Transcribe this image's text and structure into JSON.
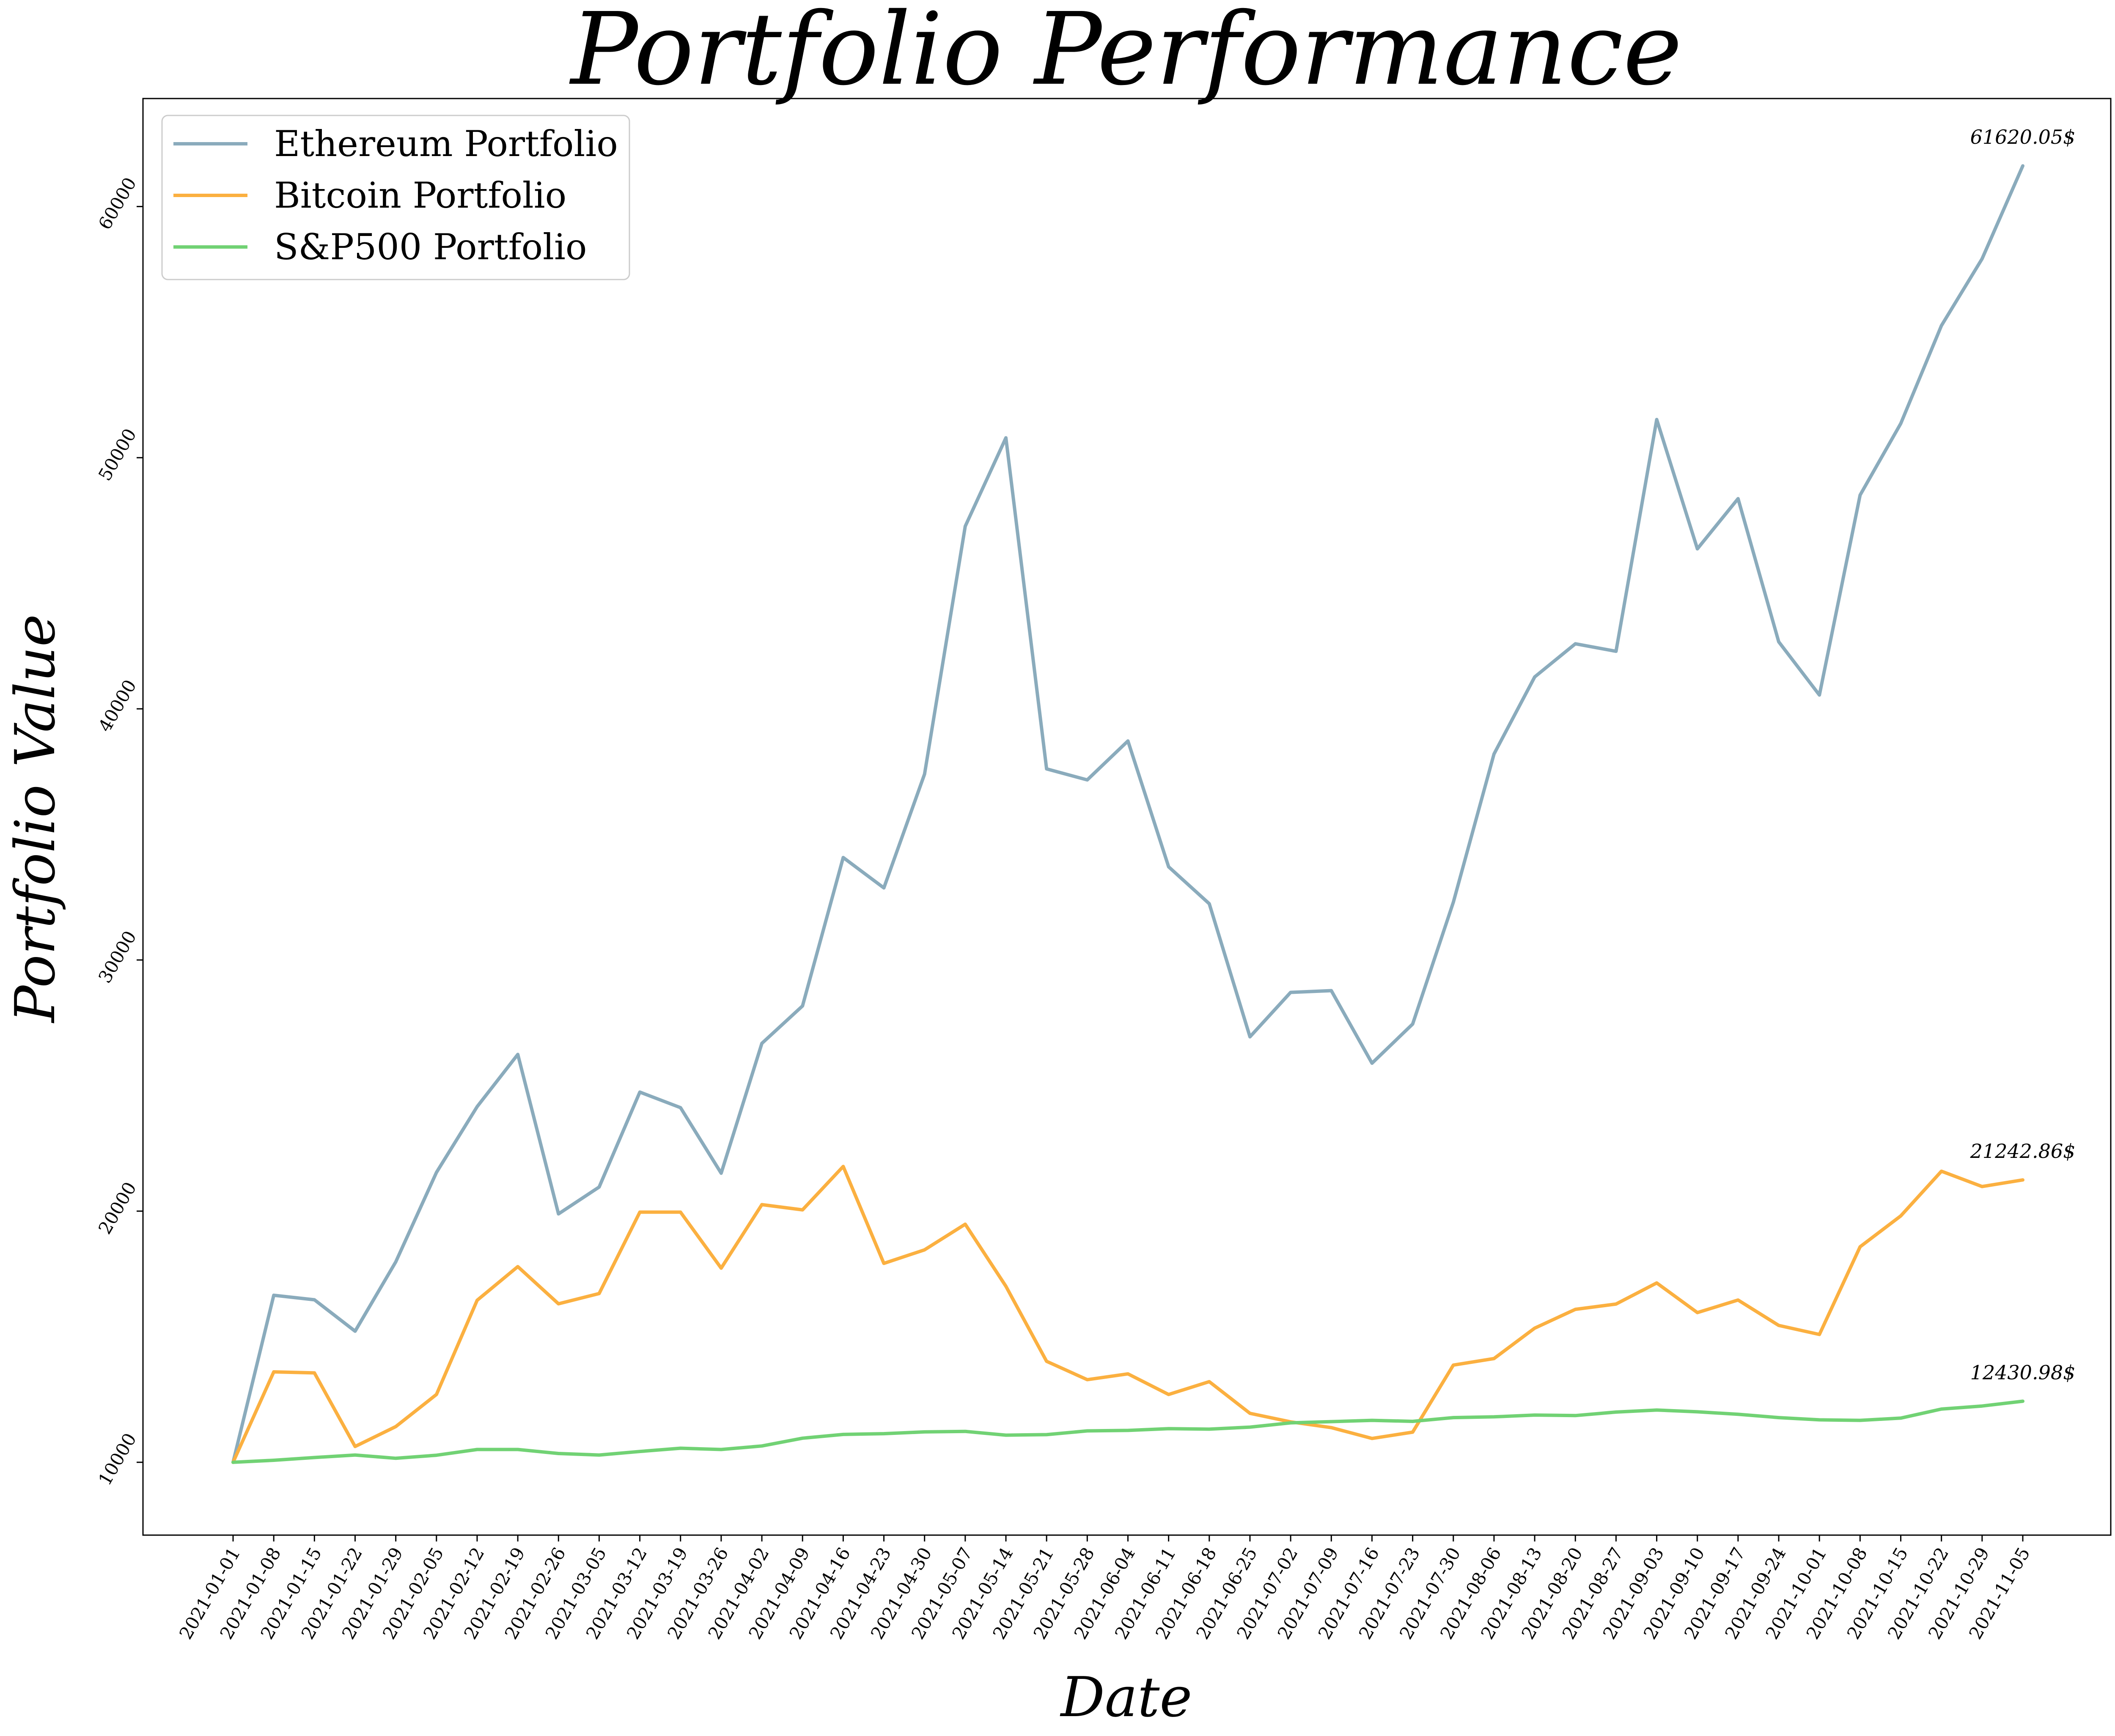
{
  "chart_data": {
    "type": "line",
    "title": "Portfolio Performance",
    "xlabel": "Date",
    "ylabel": "Portfolio Value",
    "x": [
      "2021-01-01",
      "2021-01-08",
      "2021-01-15",
      "2021-01-22",
      "2021-01-29",
      "2021-02-05",
      "2021-02-12",
      "2021-02-19",
      "2021-02-26",
      "2021-03-05",
      "2021-03-12",
      "2021-03-19",
      "2021-03-26",
      "2021-04-02",
      "2021-04-09",
      "2021-04-16",
      "2021-04-23",
      "2021-04-30",
      "2021-05-07",
      "2021-05-14",
      "2021-05-21",
      "2021-05-28",
      "2021-06-04",
      "2021-06-11",
      "2021-06-18",
      "2021-06-25",
      "2021-07-02",
      "2021-07-09",
      "2021-07-16",
      "2021-07-23",
      "2021-07-30",
      "2021-08-06",
      "2021-08-13",
      "2021-08-20",
      "2021-08-27",
      "2021-09-03",
      "2021-09-10",
      "2021-09-17",
      "2021-09-24",
      "2021-10-01",
      "2021-10-08",
      "2021-10-15",
      "2021-10-22",
      "2021-10-29",
      "2021-11-05"
    ],
    "yticks": [
      10000,
      20000,
      30000,
      40000,
      50000,
      60000
    ],
    "ylim": [
      7100,
      64300
    ],
    "grid": false,
    "legend_position": "upper-left",
    "series": [
      {
        "name": "Ethereum Portfolio",
        "color": "#8aabbc",
        "end_label": "61620.05$",
        "values": [
          10000,
          16650,
          16470,
          15220,
          17980,
          21540,
          24160,
          26240,
          19890,
          20960,
          24740,
          24120,
          21510,
          26680,
          28170,
          34080,
          32870,
          37400,
          47270,
          50790,
          37610,
          37170,
          38720,
          33710,
          32240,
          26940,
          28710,
          28780,
          25890,
          27450,
          32300,
          38200,
          41270,
          42590,
          42290,
          51520,
          46370,
          48370,
          42670,
          40550,
          48510,
          51360,
          55260,
          57920,
          61620.05
        ]
      },
      {
        "name": "Bitcoin Portfolio",
        "color": "#fbb040",
        "end_label": "21242.86$",
        "values": [
          10000,
          13600,
          13560,
          10630,
          11420,
          12700,
          16450,
          17790,
          16310,
          16720,
          19960,
          19960,
          17730,
          20260,
          20050,
          21780,
          17920,
          18460,
          19480,
          17010,
          14020,
          13290,
          13520,
          12700,
          13210,
          11950,
          11610,
          11380,
          10950,
          11200,
          13870,
          14130,
          15340,
          16090,
          16300,
          17140,
          15960,
          16460,
          15450,
          15090,
          18580,
          19810,
          21590,
          20980,
          21242.86
        ]
      },
      {
        "name": "S&P500 Portfolio",
        "color": "#71d274",
        "end_label": "12430.98$",
        "values": [
          10000,
          10080,
          10190,
          10290,
          10160,
          10280,
          10510,
          10510,
          10350,
          10290,
          10430,
          10560,
          10510,
          10650,
          10960,
          11110,
          11140,
          11210,
          11230,
          11080,
          11100,
          11250,
          11270,
          11340,
          11320,
          11400,
          11570,
          11620,
          11670,
          11630,
          11780,
          11810,
          11880,
          11860,
          12000,
          12080,
          12010,
          11910,
          11780,
          11690,
          11670,
          11760,
          12120,
          12240,
          12430.98
        ]
      }
    ]
  }
}
